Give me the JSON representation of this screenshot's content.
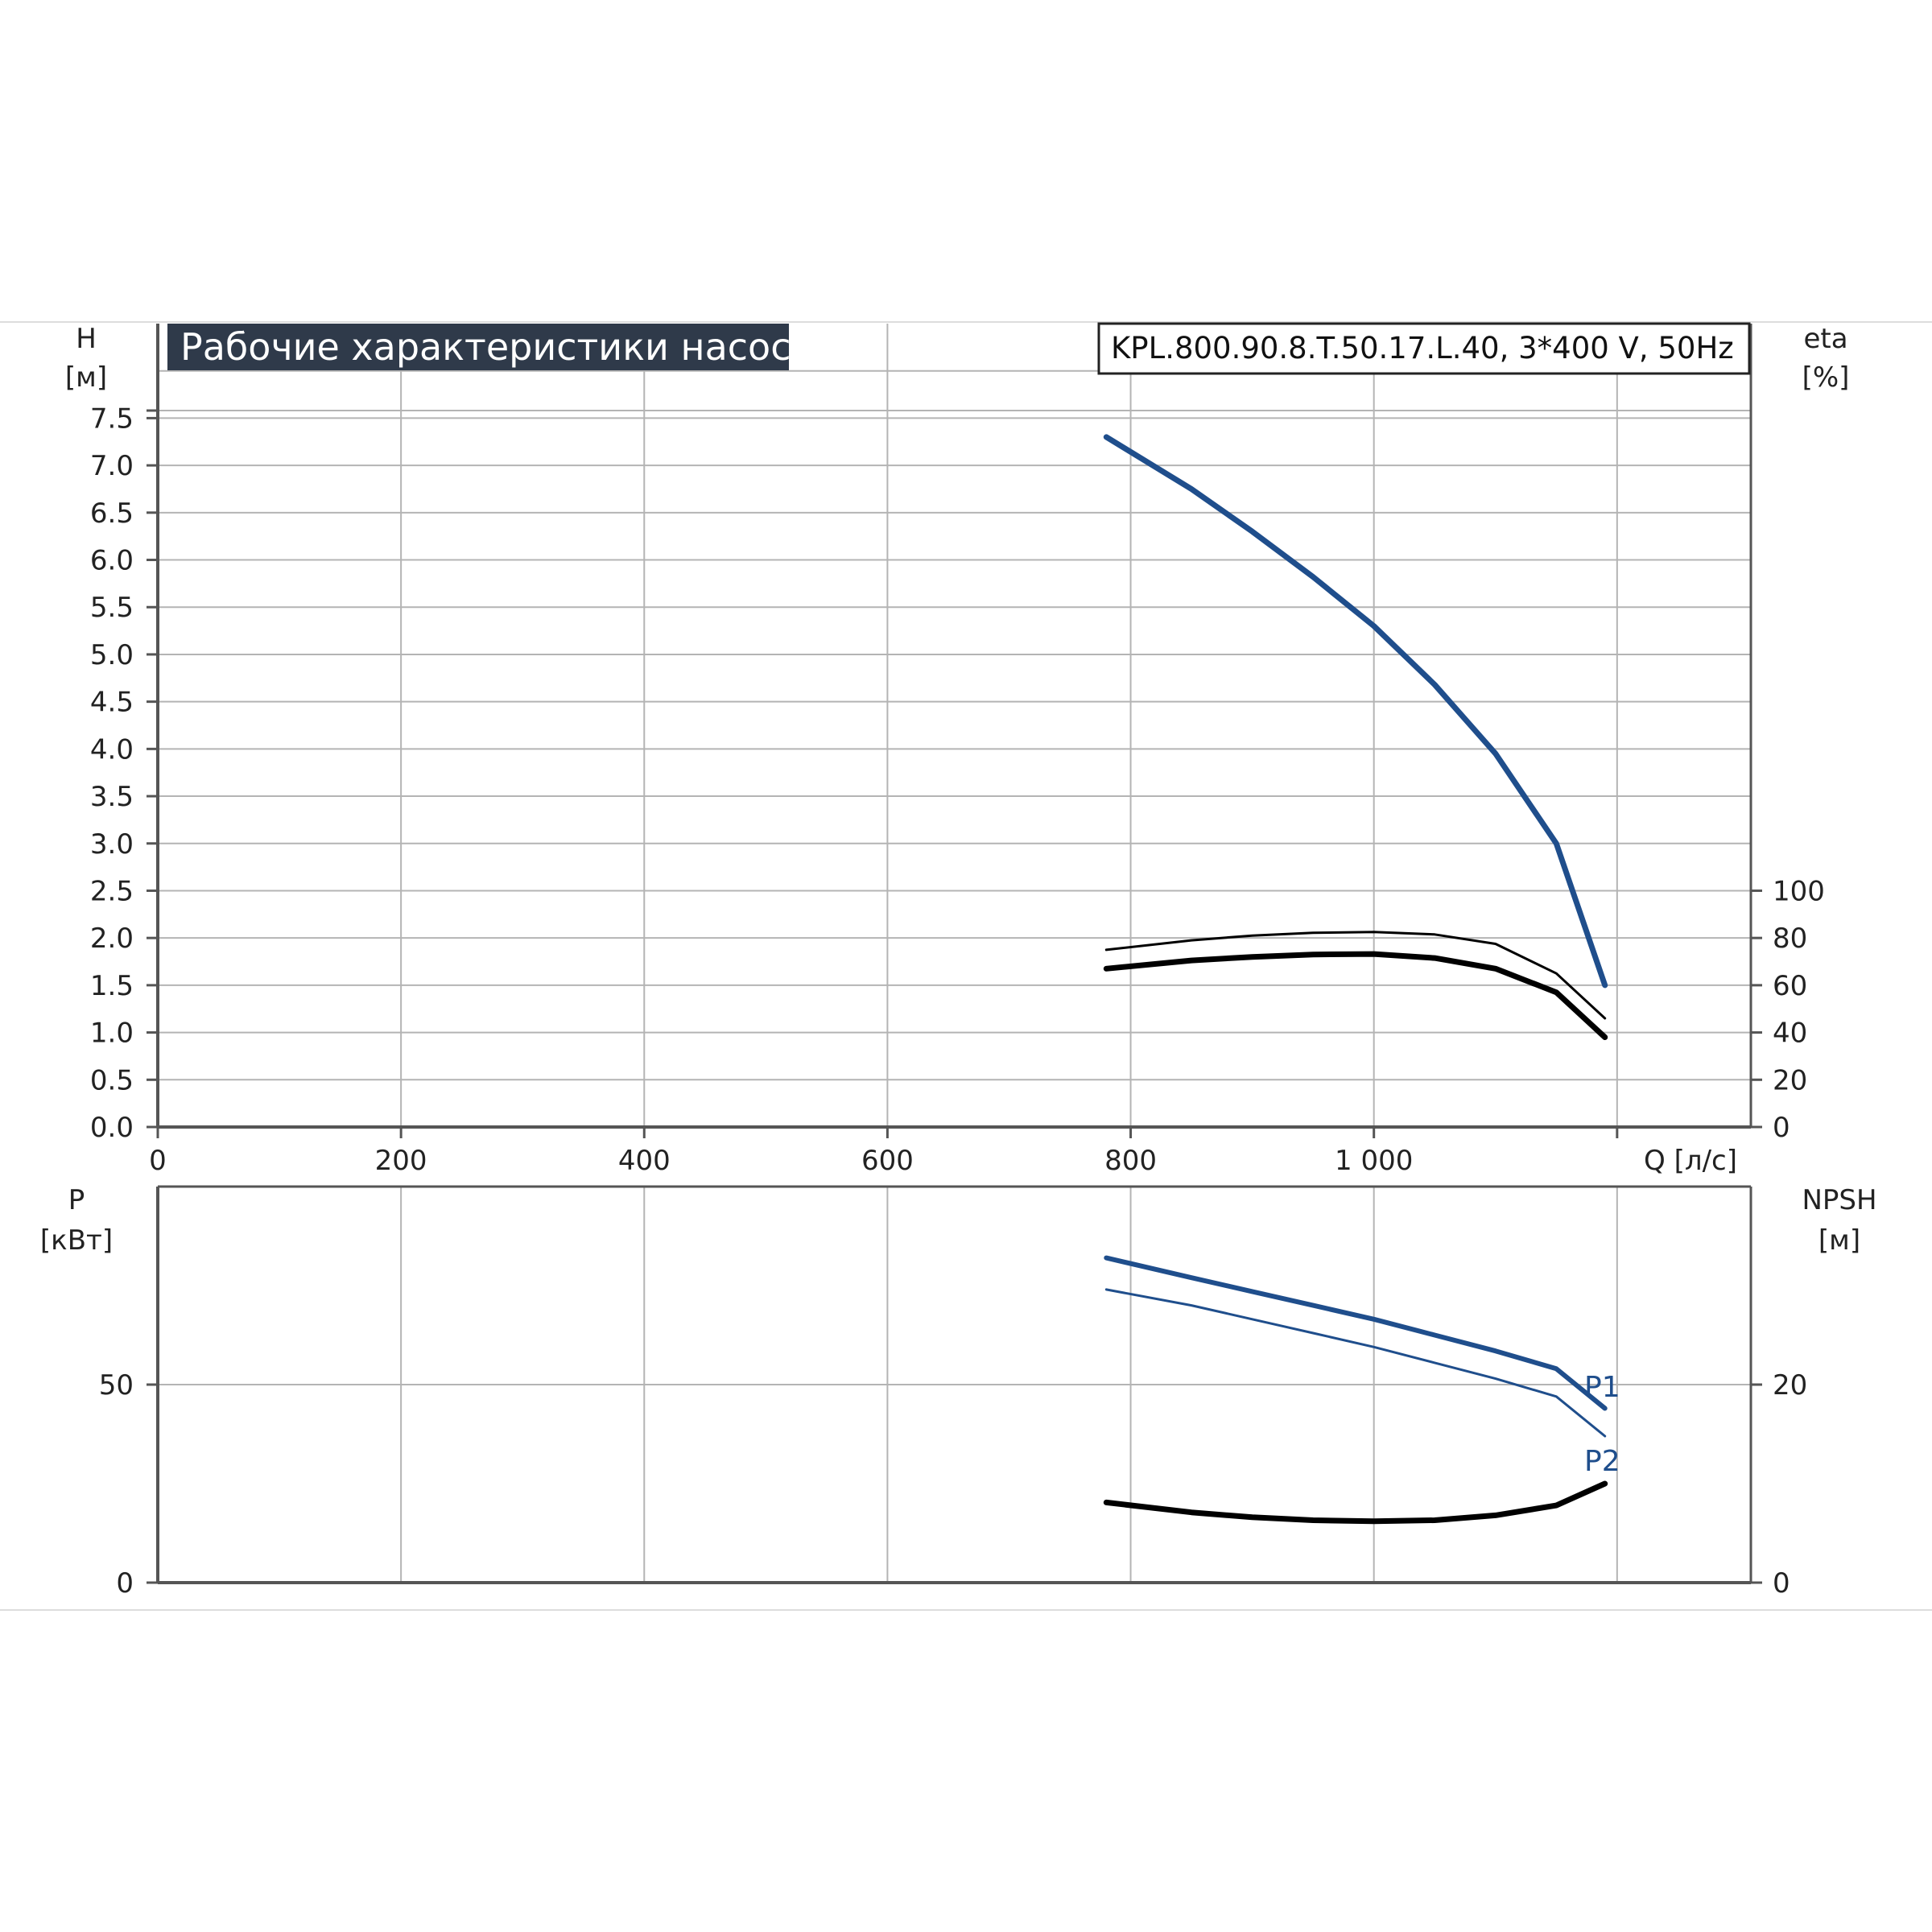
{
  "title": "Рабочие характеристики насоса",
  "model": "KPL.800.90.8.T.50.17.L.40, 3*400 V, 50Hz",
  "colors": {
    "title_bg": "#2f3a4a",
    "head_curve": "#1f4e8c",
    "power_curve": "#1f4e8c",
    "eff_curve": "#000000",
    "npsh_curve": "#000000",
    "grid": "#b4b4b4",
    "axis": "#555555"
  },
  "axes": {
    "h_label": "H",
    "h_unit": "[м]",
    "eta_label": "eta",
    "eta_unit": "[%]",
    "q_label": "Q [л/с]",
    "p_label": "P",
    "p_unit": "[кВт]",
    "npsh_label": "NPSH",
    "npsh_unit": "[м]"
  },
  "chart_data": [
    {
      "type": "line",
      "panel": "head-efficiency",
      "title": "Рабочие характеристики насоса",
      "xlabel": "Q [л/с]",
      "ylabel": "H [м]",
      "y2label": "eta [%]",
      "xlim": [
        0,
        1310
      ],
      "ylim": [
        0,
        8.5
      ],
      "y2lim": [
        0,
        100
      ],
      "x_ticks": [
        "0",
        "200",
        "400",
        "600",
        "800",
        "1 000"
      ],
      "y_ticks": [
        "0.0",
        "0.5",
        "1.0",
        "1.5",
        "2.0",
        "2.5",
        "3.0",
        "3.5",
        "4.0",
        "4.5",
        "5.0",
        "5.5",
        "6.0",
        "6.5",
        "7.0",
        "7.5"
      ],
      "y2_ticks": [
        "0",
        "20",
        "40",
        "60",
        "80",
        "100"
      ],
      "grid": true,
      "series": [
        {
          "role": "head",
          "axis": "y",
          "x": [
            780,
            850,
            900,
            950,
            1000,
            1050,
            1100,
            1150,
            1190
          ],
          "y": [
            7.3,
            6.75,
            6.3,
            5.82,
            5.3,
            4.68,
            3.95,
            3.0,
            1.5
          ]
        },
        {
          "role": "efficiency",
          "axis": "y2",
          "x": [
            780,
            850,
            900,
            950,
            1000,
            1050,
            1100,
            1150,
            1190
          ],
          "y": [
            75,
            79,
            81,
            82.2,
            82.5,
            81.5,
            77.5,
            65,
            46
          ]
        },
        {
          "role": "efficiency",
          "axis": "y2",
          "x": [
            780,
            850,
            900,
            950,
            1000,
            1050,
            1100,
            1150,
            1190
          ],
          "y": [
            67,
            70.5,
            72,
            73,
            73.2,
            71.5,
            67,
            57,
            38
          ]
        }
      ]
    },
    {
      "type": "line",
      "panel": "power-npsh",
      "xlabel": "Q [л/с]",
      "ylabel": "P [кВт]",
      "y2label": "NPSH [м]",
      "xlim": [
        0,
        1310
      ],
      "ylim": [
        0,
        100
      ],
      "y2lim": [
        0,
        40
      ],
      "y_ticks": [
        "0",
        "50"
      ],
      "y2_ticks": [
        "0",
        "20"
      ],
      "grid": true,
      "series": [
        {
          "name": "P1",
          "axis": "y",
          "x": [
            780,
            850,
            900,
            950,
            1000,
            1050,
            1100,
            1150,
            1190
          ],
          "y": [
            82,
            77,
            73.5,
            70,
            66.5,
            62.5,
            58.5,
            54,
            44
          ]
        },
        {
          "name": "P2",
          "axis": "y",
          "x": [
            780,
            850,
            900,
            950,
            1000,
            1050,
            1100,
            1150,
            1190
          ],
          "y": [
            74,
            70,
            66.5,
            63,
            59.5,
            55.5,
            51.5,
            47,
            37
          ]
        },
        {
          "role": "npsh",
          "axis": "y2",
          "x": [
            780,
            850,
            900,
            950,
            1000,
            1050,
            1100,
            1150,
            1190
          ],
          "y": [
            8.1,
            7.1,
            6.6,
            6.3,
            6.2,
            6.3,
            6.8,
            7.8,
            10
          ]
        }
      ]
    }
  ]
}
